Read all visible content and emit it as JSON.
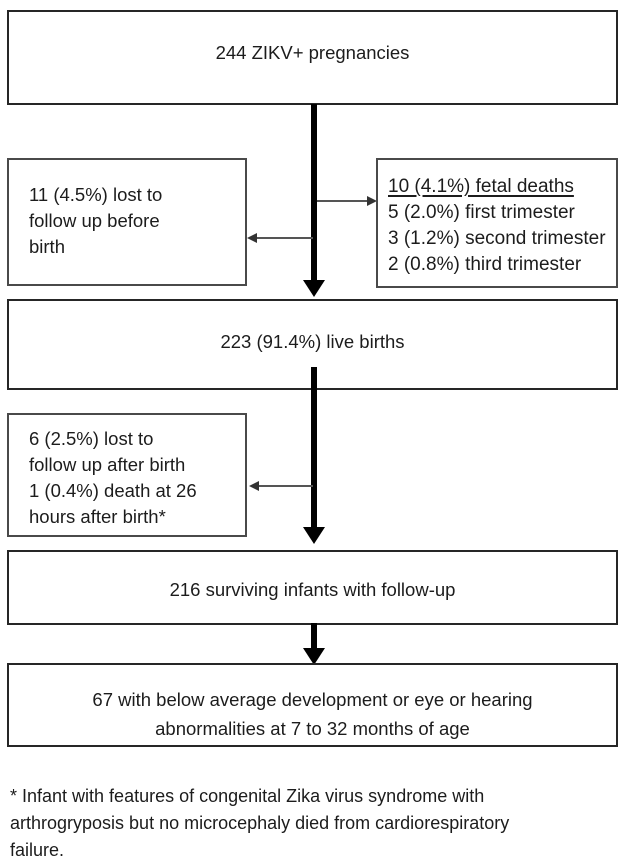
{
  "diagram": {
    "title_box": {
      "text": "244 ZIKV+ pregnancies"
    },
    "lost_before_birth_box": {
      "lines": [
        "11 (4.5%) lost to",
        "follow up before",
        "birth"
      ]
    },
    "fetal_deaths_box": {
      "heading": "10 (4.1%) fetal deaths",
      "lines": [
        "5 (2.0%) first trimester",
        "3 (1.2%) second trimester",
        "2 (0.8%) third trimester"
      ]
    },
    "live_births_box": {
      "text": "223 (91.4%) live births"
    },
    "lost_after_birth_box": {
      "lines": [
        "6 (2.5%) lost to",
        "follow up after birth",
        "1 (0.4%) death at 26",
        "hours after birth*"
      ]
    },
    "surviving_infants_box": {
      "text": "216 surviving infants with follow-up"
    },
    "outcome_box": {
      "lines": [
        "67 with below average development or eye or hearing",
        "abnormalities at 7 to 32 months of age"
      ]
    },
    "footnote": {
      "lines": [
        "* Infant with features of congenital Zika virus syndrome with",
        "arthrogryposis but no microcephaly died from cardiorespiratory",
        "failure."
      ]
    },
    "colors": {
      "box_border": "#262626",
      "side_box_border": "#4a4a4a",
      "main_arrow": "#000000",
      "connector_arrow": "#555555",
      "text": "#1c1c1c",
      "background": "#ffffff"
    }
  }
}
